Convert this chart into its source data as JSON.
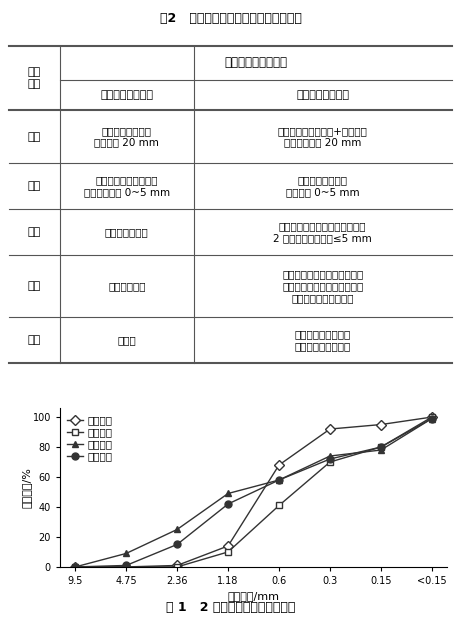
{
  "table_title": "表2   普通生产工艺与干法制砂生产工艺",
  "table_header_main": "设备与材料技术参数",
  "table_col1_header": "传统普通制砂工艺",
  "table_col2_header": "新型干法制砂工艺",
  "table_row_header": "生产\n环节",
  "table_rows": [
    {
      "row_label": "给料",
      "col1": "振动喂料机，进料\n粒径小于 20 mm",
      "col2": "立式变频振动喂料机+除铁器，\n进料粒径小于 20 mm"
    },
    {
      "row_label": "制砂",
      "col1": "两级破：先颚破后圆锥\n破，出料粒径 0~5 mm",
      "col2": "立式冲击破碎机，\n出料粒径 0~5 mm"
    },
    {
      "row_label": "筛分",
      "col1": "摇筛，单层筛网",
      "col2": "圆振动筛（晒面带倾仰角度），\n2 层筛网，筛网直径≤5 mm"
    },
    {
      "row_label": "除尘",
      "col1": "喷淋系统降尘",
      "col2": "布袋式除尘器，根据需要控制\n石粉含量；喷淋系统，喷嘴能\n调整方向及喷水量大小"
    },
    {
      "row_label": "运输",
      "col1": "溜槽式",
      "col2": "皮带运输机，避免砂\n在运输过程中离析。"
    }
  ],
  "chart_xlabel": "筛孔尺寸/mm",
  "chart_ylabel": "累计筛余/%",
  "chart_xtick_labels": [
    "9.5",
    "4.75",
    "2.36",
    "1.18",
    "0.6",
    "0.3",
    "0.15",
    "<0.15"
  ],
  "chart_yticks": [
    0,
    20,
    40,
    60,
    80,
    100
  ],
  "series": [
    {
      "name": "级配上限",
      "marker": "D",
      "values": [
        0,
        0,
        1,
        14,
        68,
        92,
        95,
        100
      ],
      "color": "#333333"
    },
    {
      "name": "级配下限",
      "marker": "s",
      "values": [
        0,
        0,
        0,
        10,
        41,
        70,
        80,
        100
      ],
      "color": "#333333"
    },
    {
      "name": "普通工艺",
      "marker": "^",
      "values": [
        0,
        9,
        25,
        49,
        58,
        74,
        78,
        99
      ],
      "color": "#333333"
    },
    {
      "name": "干法制砂",
      "marker": "o",
      "values": [
        0,
        1,
        15,
        42,
        58,
        72,
        80,
        99
      ],
      "color": "#333333"
    }
  ],
  "chart_figure_caption": "图 1   2 种生产工艺机制砂的级配",
  "bg_color": "#ffffff",
  "text_color": "#000000",
  "line_color": "#555555"
}
